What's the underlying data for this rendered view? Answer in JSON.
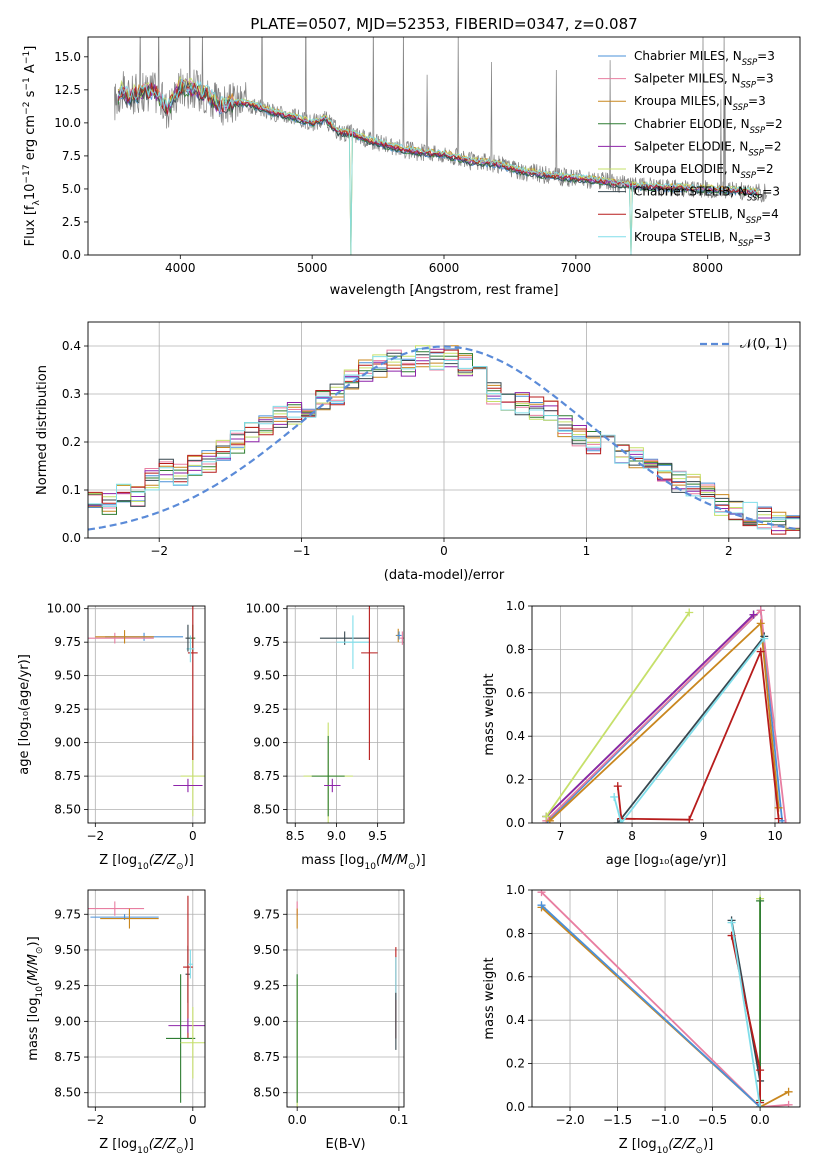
{
  "figure_title": "PLATE=0507, MJD=52353, FIBERID=0347, z=0.087",
  "colors": {
    "Chabrier MILES": "#4a90d9",
    "Salpeter MILES": "#e87ea1",
    "Kroupa MILES": "#c9871f",
    "Chabrier ELODIE": "#2e7d32",
    "Salpeter ELODIE": "#8e24aa",
    "Kroupa ELODIE": "#c6e06a",
    "Chabrier STELIB": "#37474f",
    "Salpeter STELIB": "#b71c1c",
    "Kroupa STELIB": "#80deea",
    "data": "#808080",
    "normal": "#5b8bd8"
  },
  "chart_data": [
    {
      "id": "spectrum",
      "type": "line",
      "title": "PLATE=0507, MJD=52353, FIBERID=0347, z=0.087",
      "xlabel": "wavelength [Angstrom, rest frame]",
      "ylabel_main": "Flux [f",
      "ylabel_sub": "λ",
      "ylabel_mid": "10",
      "ylabel_sup1": "−17",
      "ylabel_tail1": " erg cm",
      "ylabel_sup2": "−2",
      "ylabel_tail2": " s",
      "ylabel_sup3": "−1",
      "ylabel_tail3": " A",
      "ylabel_sup4": "−1",
      "ylabel_end": "]",
      "xlim": [
        3300,
        8700
      ],
      "ylim": [
        0,
        16.5
      ],
      "xticks": [
        4000,
        5000,
        6000,
        7000,
        8000
      ],
      "xtick_labels": [
        "4000",
        "5000",
        "6000",
        "7000",
        "8000"
      ],
      "yticks": [
        0,
        2.5,
        5,
        7.5,
        10,
        12.5,
        15
      ],
      "ytick_labels": [
        "0.0",
        "2.5",
        "5.0",
        "7.5",
        "10.0",
        "12.5",
        "15.0"
      ],
      "legend_location": "upper right",
      "legend": [
        {
          "name": "Chabrier MILES",
          "nssp": "3"
        },
        {
          "name": "Salpeter MILES",
          "nssp": "3"
        },
        {
          "name": "Kroupa MILES",
          "nssp": "3"
        },
        {
          "name": "Chabrier ELODIE",
          "nssp": "2"
        },
        {
          "name": "Salpeter ELODIE",
          "nssp": "2"
        },
        {
          "name": "Kroupa ELODIE",
          "nssp": "2"
        },
        {
          "name": "Chabrier STELIB",
          "nssp": "3"
        },
        {
          "name": "Salpeter STELIB",
          "nssp": "4"
        },
        {
          "name": "Kroupa STELIB",
          "nssp": "3"
        }
      ],
      "nssp_label": "N",
      "nssp_sub": "SSP",
      "continuum": {
        "x": [
          3500,
          3550,
          3600,
          3700,
          3800,
          3900,
          4000,
          4100,
          4200,
          4300,
          4400,
          4500,
          4600,
          4700,
          4800,
          4900,
          5000,
          5100,
          5200,
          5300,
          5400,
          5500,
          5600,
          5700,
          5800,
          5900,
          6000,
          6100,
          6200,
          6300,
          6400,
          6500,
          6600,
          6700,
          6800,
          6900,
          7000,
          7100,
          7200,
          7300,
          7400,
          7500,
          7600,
          7700,
          7800,
          7900,
          8000,
          8100,
          8200,
          8300,
          8400
        ],
        "y": [
          11.5,
          12.5,
          12.0,
          12.3,
          12.5,
          11.0,
          12.8,
          12.6,
          12.2,
          11.2,
          11.5,
          11.5,
          11.2,
          10.8,
          10.6,
          10.3,
          10.0,
          10.3,
          9.3,
          9.2,
          8.8,
          8.5,
          8.2,
          8.0,
          7.8,
          7.7,
          7.6,
          7.4,
          7.1,
          7.0,
          6.9,
          6.6,
          6.3,
          6.2,
          6.0,
          5.9,
          5.8,
          5.7,
          5.6,
          5.4,
          5.3,
          5.2,
          5.15,
          5.1,
          5.1,
          5.0,
          5.0,
          4.9,
          4.9,
          4.8,
          4.7
        ]
      },
      "gaps": [
        3520,
        5290,
        7420
      ]
    },
    {
      "id": "residuals",
      "type": "bar",
      "xlabel": "(data-model)/error",
      "ylabel": "Normed distribution",
      "xlim": [
        -2.5,
        2.5
      ],
      "ylim": [
        0,
        0.45
      ],
      "xticks": [
        -2,
        -1,
        0,
        1,
        2
      ],
      "xtick_labels": [
        "−2",
        "−1",
        "0",
        "1",
        "2"
      ],
      "yticks": [
        0,
        0.1,
        0.2,
        0.3,
        0.4
      ],
      "ytick_labels": [
        "0.0",
        "0.1",
        "0.2",
        "0.3",
        "0.4"
      ],
      "legend_location": "upper right",
      "legend_label": "𝒩(0, 1)",
      "bin_width": 0.1,
      "bin_start": -2.5,
      "base_hist": [
        0.08,
        0.07,
        0.09,
        0.09,
        0.12,
        0.14,
        0.13,
        0.15,
        0.16,
        0.18,
        0.2,
        0.22,
        0.24,
        0.25,
        0.26,
        0.27,
        0.29,
        0.3,
        0.33,
        0.35,
        0.36,
        0.37,
        0.36,
        0.38,
        0.37,
        0.38,
        0.36,
        0.34,
        0.3,
        0.29,
        0.28,
        0.27,
        0.27,
        0.23,
        0.21,
        0.2,
        0.19,
        0.18,
        0.17,
        0.15,
        0.14,
        0.12,
        0.11,
        0.09,
        0.07,
        0.06,
        0.05,
        0.04,
        0.03,
        0.025
      ],
      "normal": {
        "mean": 0,
        "sigma": 1
      }
    },
    {
      "id": "age-vs-Z",
      "type": "scatter",
      "xlabel_main": "Z [log",
      "xlabel_sub": "10",
      "xlabel_end": "(Z/Z",
      "xlabel_sub2": "⊙",
      "xlabel_close": ")]",
      "ylabel": "age  [log₁₀(age/yr)]",
      "xlim": [
        -2.15,
        0.25
      ],
      "ylim": [
        8.4,
        10.02
      ],
      "xticks": [
        -2,
        0
      ],
      "xtick_labels": [
        "−2",
        "0"
      ],
      "yticks": [
        8.5,
        8.75,
        9.0,
        9.25,
        9.5,
        9.75,
        10.0
      ],
      "ytick_labels": [
        "8.50",
        "8.75",
        "9.00",
        "9.25",
        "9.50",
        "9.75",
        "10.00"
      ],
      "points": [
        {
          "s": "Chabrier MILES",
          "x": -1.0,
          "y": 9.79,
          "xe": 0.8,
          "ye": 0.03
        },
        {
          "s": "Salpeter MILES",
          "x": -1.6,
          "y": 9.78,
          "xe": 0.8,
          "ye": 0.04
        },
        {
          "s": "Kroupa MILES",
          "x": -1.4,
          "y": 9.79,
          "xe": 0.6,
          "ye": 0.05
        },
        {
          "s": "Chabrier ELODIE",
          "x": 0.0,
          "y": 9.78,
          "xe": 0.05,
          "ye": 0.1
        },
        {
          "s": "Kroupa ELODIE",
          "x": 0.0,
          "y": 8.75,
          "xe": 0.25,
          "ye": 0.3
        },
        {
          "s": "Salpeter ELODIE",
          "x": -0.1,
          "y": 8.68,
          "xe": 0.3,
          "ye": 0.05
        },
        {
          "s": "Salpeter STELIB",
          "x": 0.0,
          "y": 9.67,
          "xe": 0.1,
          "ye": 0.8
        },
        {
          "s": "Kroupa STELIB",
          "x": -0.05,
          "y": 9.7,
          "xe": 0.08,
          "ye": 0.1
        },
        {
          "s": "Chabrier STELIB",
          "x": -0.1,
          "y": 9.78,
          "xe": 0.05,
          "ye": 0.1
        }
      ]
    },
    {
      "id": "age-vs-mass",
      "type": "scatter",
      "xlabel_main": "mass [log",
      "xlabel_sub": "10",
      "xlabel_end": "(M/M",
      "xlabel_sub2": "⊙",
      "xlabel_close": ")]",
      "xlim": [
        8.4,
        9.82
      ],
      "ylim": [
        8.4,
        10.02
      ],
      "xticks": [
        8.5,
        9.0,
        9.5
      ],
      "xtick_labels": [
        "8.5",
        "9.0",
        "9.5"
      ],
      "yticks": [
        8.5,
        8.75,
        9.0,
        9.25,
        9.5,
        9.75,
        10.0
      ],
      "ytick_labels": [
        "8.50",
        "8.75",
        "9.00",
        "9.25",
        "9.50",
        "9.75",
        "10.00"
      ],
      "points": [
        {
          "s": "Chabrier STELIB",
          "x": 9.1,
          "y": 9.78,
          "xe": 0.3,
          "ye": 0.05
        },
        {
          "s": "Kroupa STELIB",
          "x": 9.2,
          "y": 9.75,
          "xe": 0.2,
          "ye": 0.2
        },
        {
          "s": "Salpeter STELIB",
          "x": 9.4,
          "y": 9.67,
          "xe": 0.1,
          "ye": 0.8
        },
        {
          "s": "Kroupa ELODIE",
          "x": 8.9,
          "y": 8.75,
          "xe": 0.3,
          "ye": 0.4
        },
        {
          "s": "Chabrier ELODIE",
          "x": 8.9,
          "y": 8.75,
          "xe": 0.2,
          "ye": 0.3
        },
        {
          "s": "Salpeter ELODIE",
          "x": 8.95,
          "y": 8.68,
          "xe": 0.1,
          "ye": 0.05
        },
        {
          "s": "Kroupa MILES",
          "x": 9.75,
          "y": 9.8,
          "xe": 0.03,
          "ye": 0.05
        },
        {
          "s": "Salpeter MILES",
          "x": 9.8,
          "y": 9.78,
          "xe": 0.03,
          "ye": 0.05
        },
        {
          "s": "Chabrier MILES",
          "x": 9.76,
          "y": 9.8,
          "xe": 0.03,
          "ye": 0.03
        }
      ]
    },
    {
      "id": "weight-vs-age",
      "type": "line",
      "xlabel": "age  [log₁₀(age/yr)]",
      "ylabel": "mass weight",
      "xlim": [
        6.6,
        10.35
      ],
      "ylim": [
        0,
        1.0
      ],
      "xticks": [
        7,
        8,
        9,
        10
      ],
      "xtick_labels": [
        "7",
        "8",
        "9",
        "10"
      ],
      "yticks": [
        0,
        0.2,
        0.4,
        0.6,
        0.8,
        1.0
      ],
      "ytick_labels": [
        "0.0",
        "0.2",
        "0.4",
        "0.6",
        "0.8",
        "1.0"
      ],
      "series": [
        {
          "s": "Chabrier MILES",
          "x": [
            6.8,
            9.8,
            10.1
          ],
          "y": [
            0.0,
            0.98,
            0.01
          ]
        },
        {
          "s": "Salpeter MILES",
          "x": [
            6.8,
            9.8,
            10.15
          ],
          "y": [
            0.01,
            0.98,
            0.0
          ]
        },
        {
          "s": "Kroupa MILES",
          "x": [
            6.85,
            9.8,
            10.05
          ],
          "y": [
            0.01,
            0.92,
            0.07
          ]
        },
        {
          "s": "Chabrier ELODIE",
          "x": [
            6.8,
            9.7
          ],
          "y": [
            0.03,
            0.96
          ]
        },
        {
          "s": "Salpeter ELODIE",
          "x": [
            6.8,
            9.7
          ],
          "y": [
            0.03,
            0.96
          ]
        },
        {
          "s": "Kroupa ELODIE",
          "x": [
            6.8,
            8.8
          ],
          "y": [
            0.03,
            0.97
          ]
        },
        {
          "s": "Chabrier STELIB",
          "x": [
            7.8,
            9.85
          ],
          "y": [
            0.0,
            0.86
          ]
        },
        {
          "s": "Salpeter STELIB",
          "x": [
            7.8,
            7.85,
            8.8,
            9.8,
            10.05
          ],
          "y": [
            0.17,
            0.02,
            0.015,
            0.79,
            0.02
          ]
        },
        {
          "s": "Kroupa STELIB",
          "x": [
            7.75,
            7.85,
            9.85
          ],
          "y": [
            0.12,
            0.0,
            0.85
          ]
        }
      ]
    },
    {
      "id": "mass-vs-Z",
      "type": "scatter",
      "xlabel_main": "Z [log",
      "xlabel_sub": "10",
      "xlabel_end": "(Z/Z",
      "xlabel_sub2": "⊙",
      "xlabel_close": ")]",
      "ylabel_main": "mass [log",
      "ylabel_sub": "10",
      "ylabel_end": "(M/M",
      "ylabel_sub2": "⊙",
      "ylabel_close": ")]",
      "xlim": [
        -2.15,
        0.25
      ],
      "ylim": [
        8.4,
        9.92
      ],
      "xticks": [
        -2,
        0
      ],
      "xtick_labels": [
        "−2",
        "0"
      ],
      "yticks": [
        8.5,
        8.75,
        9.0,
        9.25,
        9.5,
        9.75
      ],
      "ytick_labels": [
        "8.50",
        "8.75",
        "9.00",
        "9.25",
        "9.50",
        "9.75"
      ],
      "points": [
        {
          "s": "Chabrier MILES",
          "x": -1.4,
          "y": 9.73,
          "xe": 0.7,
          "ye": 0.02
        },
        {
          "s": "Salpeter MILES",
          "x": -1.6,
          "y": 9.79,
          "xe": 0.6,
          "ye": 0.05
        },
        {
          "s": "Kroupa MILES",
          "x": -1.3,
          "y": 9.72,
          "xe": 0.6,
          "ye": 0.07
        },
        {
          "s": "Chabrier STELIB",
          "x": -0.1,
          "y": 9.33,
          "xe": 0.05,
          "ye": 0.2
        },
        {
          "s": "Salpeter STELIB",
          "x": -0.1,
          "y": 9.38,
          "xe": 0.1,
          "ye": 0.5
        },
        {
          "s": "Kroupa STELIB",
          "x": -0.05,
          "y": 9.4,
          "xe": 0.05,
          "ye": 0.1
        },
        {
          "s": "Salpeter ELODIE",
          "x": -0.1,
          "y": 8.97,
          "xe": 0.4,
          "ye": 0.05
        },
        {
          "s": "Chabrier ELODIE",
          "x": -0.25,
          "y": 8.88,
          "xe": 0.3,
          "ye": 0.45
        },
        {
          "s": "Kroupa ELODIE",
          "x": 0.0,
          "y": 8.85,
          "xe": 0.25,
          "ye": 0.25
        }
      ]
    },
    {
      "id": "mass-vs-EBV",
      "type": "scatter",
      "xlabel": "E(B-V)",
      "xlim": [
        -0.01,
        0.105
      ],
      "ylim": [
        8.4,
        9.92
      ],
      "xticks": [
        0.0,
        0.1
      ],
      "xtick_labels": [
        "0.0",
        "0.1"
      ],
      "yticks": [
        8.5,
        8.75,
        9.0,
        9.25,
        9.5,
        9.75
      ],
      "ytick_labels": [
        "8.50",
        "8.75",
        "9.00",
        "9.25",
        "9.50",
        "9.75"
      ],
      "points": [
        {
          "s": "Salpeter MILES",
          "x": 0.0,
          "y": 9.79,
          "xe": 0.0,
          "ye": 0.05
        },
        {
          "s": "Kroupa MILES",
          "x": 0.0,
          "y": 9.72,
          "xe": 0.0,
          "ye": 0.07
        },
        {
          "s": "Kroupa ELODIE",
          "x": 0.0,
          "y": 8.85,
          "xe": 0.0,
          "ye": 0.45
        },
        {
          "s": "Chabrier ELODIE",
          "x": 0.0,
          "y": 8.88,
          "xe": 0.0,
          "ye": 0.45
        },
        {
          "s": "Salpeter STELIB",
          "x": 0.097,
          "y": 9.2,
          "xe": 0.0,
          "ye": 0.32
        },
        {
          "s": "Kroupa STELIB",
          "x": 0.097,
          "y": 9.3,
          "xe": 0.0,
          "ye": 0.15
        },
        {
          "s": "Chabrier STELIB",
          "x": 0.097,
          "y": 9.0,
          "xe": 0.0,
          "ye": 0.2
        }
      ]
    },
    {
      "id": "weight-vs-Z",
      "type": "line",
      "xlabel_main": "Z [log",
      "xlabel_sub": "10",
      "xlabel_end": "(Z/Z",
      "xlabel_sub2": "⊙",
      "xlabel_close": ")]",
      "ylabel": "mass weight",
      "xlim": [
        -2.4,
        0.42
      ],
      "ylim": [
        0,
        1.0
      ],
      "xticks": [
        -2.0,
        -1.5,
        -1.0,
        -0.5,
        0.0
      ],
      "xtick_labels": [
        "−2.0",
        "−1.5",
        "−1.0",
        "−0.5",
        "0.0"
      ],
      "yticks": [
        0,
        0.2,
        0.4,
        0.6,
        0.8,
        1.0
      ],
      "ytick_labels": [
        "0.0",
        "0.2",
        "0.4",
        "0.6",
        "0.8",
        "1.0"
      ],
      "series": [
        {
          "s": "Salpeter MILES",
          "x": [
            -2.3,
            0.0,
            0.3
          ],
          "y": [
            0.99,
            0.0,
            0.01
          ]
        },
        {
          "s": "Kroupa MILES",
          "x": [
            -2.3,
            0.0,
            0.3
          ],
          "y": [
            0.92,
            0.0,
            0.07
          ]
        },
        {
          "s": "Chabrier MILES",
          "x": [
            -2.3,
            0.0
          ],
          "y": [
            0.93,
            0.0
          ]
        },
        {
          "s": "Kroupa ELODIE",
          "x": [
            0.0,
            0.0
          ],
          "y": [
            0.03,
            0.96
          ]
        },
        {
          "s": "Chabrier ELODIE",
          "x": [
            0.0,
            0.0
          ],
          "y": [
            0.03,
            0.95
          ]
        },
        {
          "s": "Chabrier STELIB",
          "x": [
            -0.3,
            0.0
          ],
          "y": [
            0.86,
            0.12
          ]
        },
        {
          "s": "Salpeter STELIB",
          "x": [
            -0.3,
            0.0,
            0.0
          ],
          "y": [
            0.79,
            0.17,
            0.02
          ]
        },
        {
          "s": "Kroupa STELIB",
          "x": [
            -0.3,
            0.0
          ],
          "y": [
            0.85,
            0.0
          ]
        }
      ]
    }
  ]
}
